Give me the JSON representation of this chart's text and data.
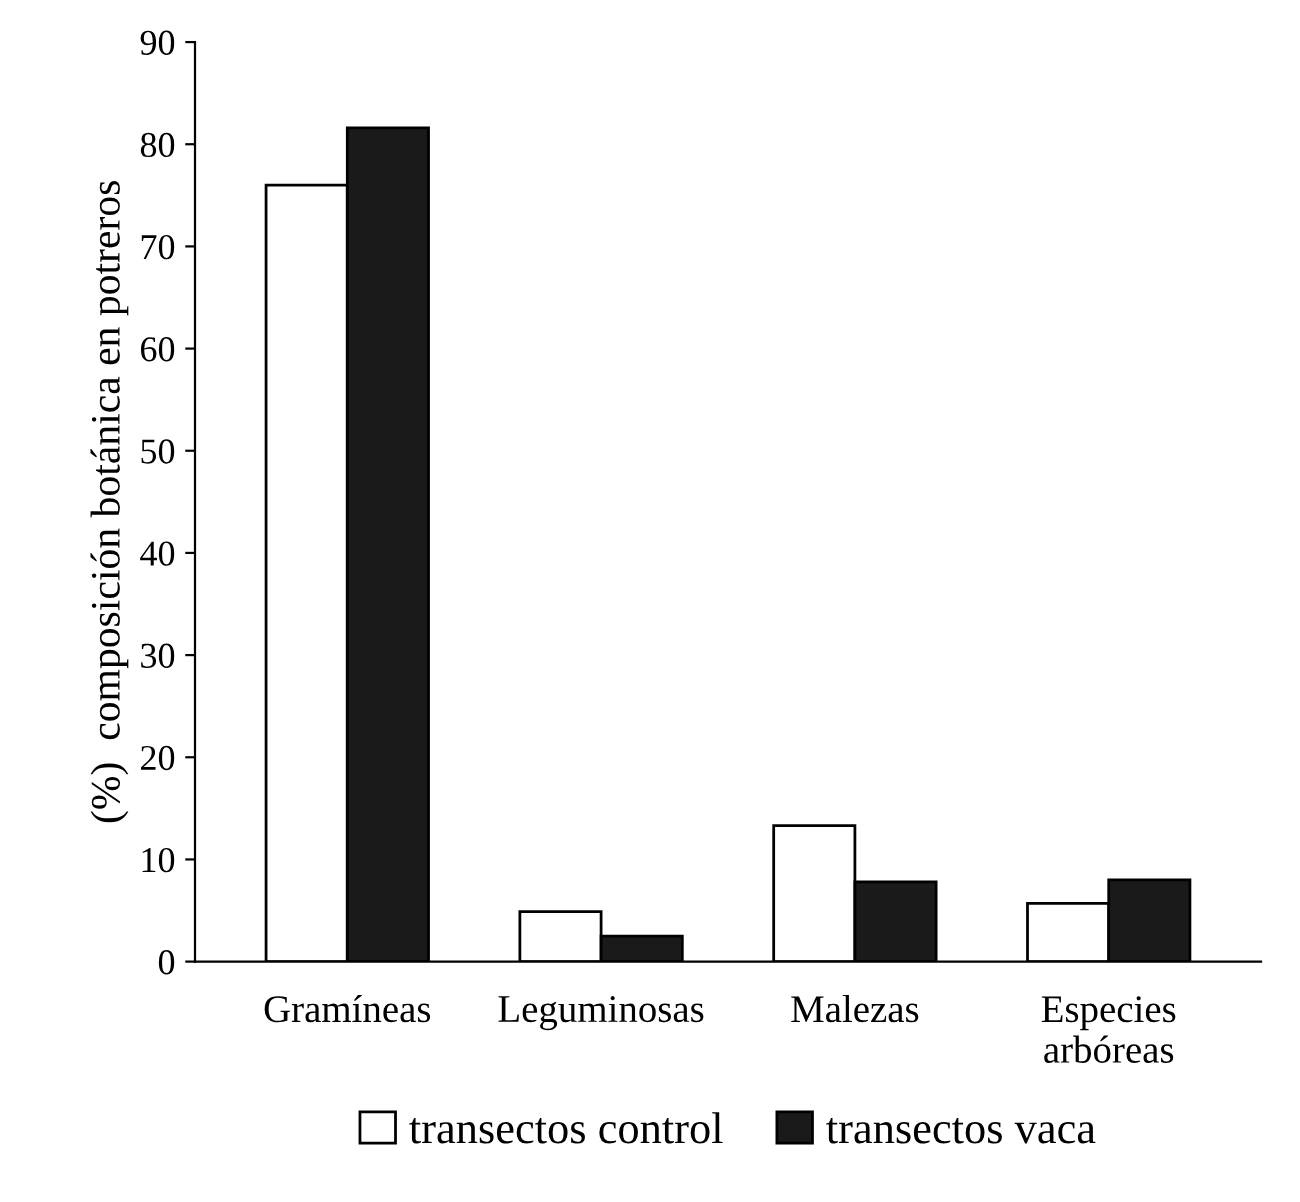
{
  "chart_data": {
    "type": "bar",
    "ylabel": "(%)  composición botánica en potreros",
    "categories": [
      "Gramíneas",
      "Leguminosas",
      "Malezas",
      "Especies\narbóreas"
    ],
    "series": [
      {
        "name": "transectos control",
        "color": "#ffffff",
        "values": [
          76,
          4.9,
          13.3,
          5.7
        ]
      },
      {
        "name": "transectos vaca",
        "color": "#1a1a1a",
        "values": [
          81.6,
          2.5,
          7.8,
          8.0
        ]
      }
    ],
    "ylim": [
      0,
      90
    ],
    "yticks": [
      0,
      10,
      20,
      30,
      40,
      50,
      60,
      70,
      80,
      90
    ],
    "grid": false,
    "legend": "bottom"
  }
}
